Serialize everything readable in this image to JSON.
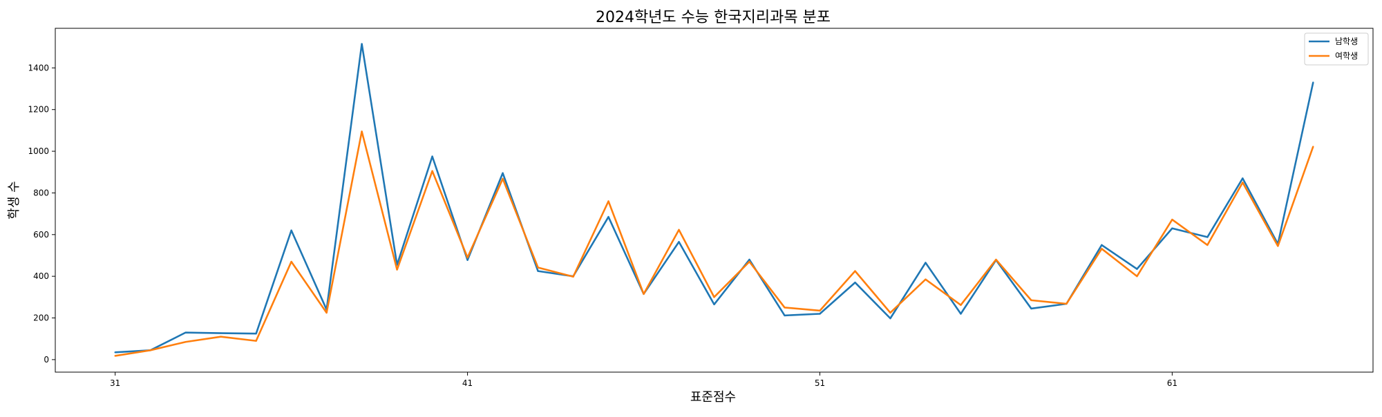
{
  "chart_data": {
    "type": "line",
    "title": "2024학년도 수능 한국지리과목 분포",
    "xlabel": "표준점수",
    "ylabel": "학생 수",
    "x": [
      31,
      32,
      33,
      34,
      35,
      36,
      37,
      38,
      39,
      40,
      41,
      42,
      43,
      44,
      45,
      46,
      47,
      48,
      49,
      50,
      51,
      52,
      53,
      54,
      55,
      56,
      57,
      58,
      59,
      60,
      61,
      62,
      63,
      64,
      65
    ],
    "xticks": [
      31,
      41,
      51,
      61
    ],
    "yticks": [
      0,
      200,
      400,
      600,
      800,
      1000,
      1200,
      1400
    ],
    "xlim": [
      29.3,
      66.7
    ],
    "ylim": [
      -60,
      1590
    ],
    "grid": false,
    "legend_position": "top-right",
    "series": [
      {
        "name": "남학생",
        "color": "#1f77b4",
        "values": [
          35,
          45,
          130,
          127,
          125,
          620,
          240,
          1515,
          455,
          975,
          478,
          895,
          425,
          400,
          685,
          315,
          565,
          265,
          480,
          212,
          220,
          370,
          198,
          465,
          220,
          478,
          245,
          268,
          550,
          435,
          630,
          588,
          870,
          555,
          1330
        ]
      },
      {
        "name": "여학생",
        "color": "#ff7f0e",
        "values": [
          18,
          45,
          85,
          110,
          90,
          470,
          225,
          1095,
          432,
          905,
          490,
          868,
          442,
          398,
          760,
          315,
          623,
          300,
          470,
          250,
          235,
          425,
          225,
          385,
          262,
          480,
          285,
          268,
          532,
          400,
          672,
          550,
          850,
          545,
          1022
        ]
      }
    ]
  }
}
